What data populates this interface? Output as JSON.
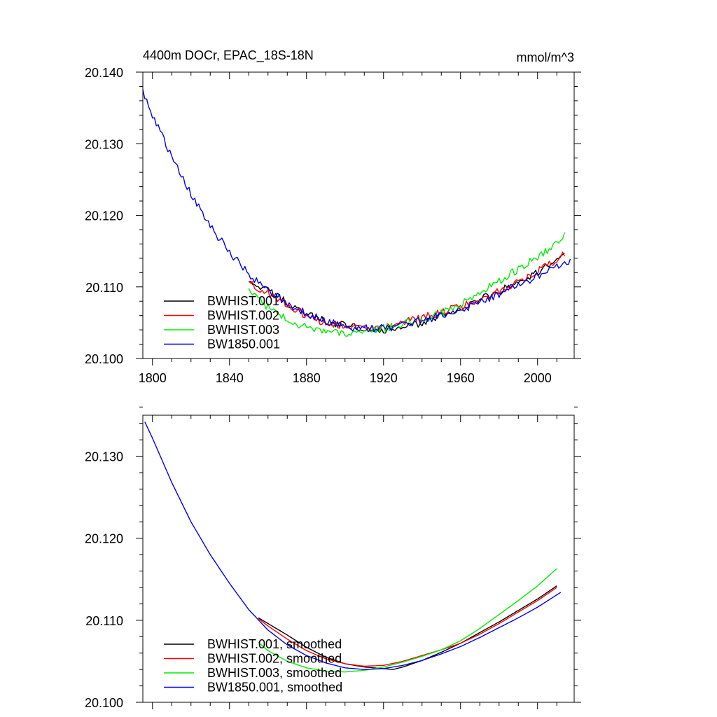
{
  "chart_data": [
    {
      "type": "line",
      "title": "4400m DOCr, EPAC_18S-18N",
      "units": "mmol/m^3",
      "xlim": [
        1795,
        2019
      ],
      "ylim": [
        20.1,
        20.14
      ],
      "xticks": [
        1800,
        1840,
        1880,
        1920,
        1960,
        2000
      ],
      "xtick_labels": [
        "1800",
        "1840",
        "1880",
        "1920",
        "1960",
        "2000"
      ],
      "yticks": [
        20.1,
        20.11,
        20.12,
        20.13,
        20.14
      ],
      "ytick_labels": [
        "20.100",
        "20.110",
        "20.120",
        "20.130",
        "20.140"
      ],
      "legend_position": "bottom-left",
      "grid": false,
      "series": [
        {
          "name": "BWHIST.001",
          "color": "#000000",
          "x": [
            1850,
            1860,
            1870,
            1880,
            1890,
            1900,
            1910,
            1920,
            1930,
            1940,
            1950,
            1960,
            1970,
            1980,
            1990,
            2000,
            2010,
            2014
          ],
          "y": [
            20.1105,
            20.1095,
            20.1078,
            20.1062,
            20.1052,
            20.1046,
            20.1043,
            20.104,
            20.1042,
            20.105,
            20.106,
            20.107,
            20.1082,
            20.1093,
            20.1108,
            20.112,
            20.1138,
            20.1145
          ]
        },
        {
          "name": "BWHIST.002",
          "color": "#ff0000",
          "x": [
            1850,
            1860,
            1870,
            1880,
            1890,
            1900,
            1910,
            1920,
            1930,
            1940,
            1950,
            1960,
            1970,
            1980,
            1990,
            2000,
            2010,
            2014
          ],
          "y": [
            20.1105,
            20.1092,
            20.1075,
            20.106,
            20.105,
            20.1044,
            20.1042,
            20.1045,
            20.105,
            20.1057,
            20.1065,
            20.1072,
            20.1082,
            20.1094,
            20.1108,
            20.1122,
            20.1138,
            20.1145
          ]
        },
        {
          "name": "BWHIST.003",
          "color": "#00ee00",
          "x": [
            1850,
            1860,
            1870,
            1880,
            1890,
            1900,
            1910,
            1920,
            1930,
            1940,
            1950,
            1960,
            1970,
            1980,
            1990,
            2000,
            2010,
            2014
          ],
          "y": [
            20.1095,
            20.1072,
            20.1055,
            20.1043,
            20.1037,
            20.1036,
            20.1038,
            20.1042,
            20.1048,
            20.1055,
            20.1063,
            20.1075,
            20.1092,
            20.1108,
            20.1125,
            20.1142,
            20.116,
            20.1172
          ]
        },
        {
          "name": "BW1850.001",
          "color": "#0000ee",
          "x": [
            1795,
            1800,
            1810,
            1820,
            1830,
            1840,
            1850,
            1860,
            1870,
            1880,
            1890,
            1900,
            1910,
            1920,
            1930,
            1940,
            1950,
            1960,
            1970,
            1980,
            1990,
            2000,
            2010,
            2017
          ],
          "y": [
            20.1372,
            20.134,
            20.1282,
            20.123,
            20.1185,
            20.1148,
            20.1118,
            20.1095,
            20.1077,
            20.1062,
            20.1052,
            20.1045,
            20.1042,
            20.1042,
            20.1046,
            20.1053,
            20.106,
            20.1068,
            20.1078,
            20.109,
            20.1103,
            20.1115,
            20.1128,
            20.1138
          ]
        }
      ]
    },
    {
      "type": "line",
      "xlim": [
        1795,
        2019
      ],
      "ylim": [
        20.1,
        20.135
      ],
      "xticks": [
        1800,
        1840,
        1880,
        1920,
        1960,
        2000
      ],
      "yticks": [
        20.1,
        20.11,
        20.12,
        20.13
      ],
      "ytick_labels": [
        "20.100",
        "20.110",
        "20.120",
        "20.130"
      ],
      "legend_position": "bottom-left",
      "grid": false,
      "series": [
        {
          "name": "BWHIST.001, smoothed",
          "color": "#000000",
          "x": [
            1855,
            1860,
            1870,
            1880,
            1890,
            1900,
            1910,
            1920,
            1925,
            1930,
            1940,
            1950,
            1960,
            1970,
            1980,
            1990,
            2000,
            2010
          ],
          "y": [
            20.1103,
            20.1096,
            20.1082,
            20.1067,
            20.1055,
            20.1047,
            20.1043,
            20.1041,
            20.104,
            20.1043,
            20.1051,
            20.1061,
            20.1072,
            20.1085,
            20.1098,
            20.1112,
            20.1126,
            20.1142
          ]
        },
        {
          "name": "BWHIST.002, smoothed",
          "color": "#ff0000",
          "x": [
            1855,
            1860,
            1870,
            1880,
            1890,
            1900,
            1910,
            1920,
            1930,
            1940,
            1950,
            1960,
            1970,
            1980,
            1990,
            2000,
            2010
          ],
          "y": [
            20.1102,
            20.1093,
            20.1077,
            20.1063,
            20.1053,
            20.1047,
            20.1044,
            20.1045,
            20.105,
            20.1057,
            20.1064,
            20.1072,
            20.1083,
            20.1096,
            20.111,
            20.1124,
            20.114
          ]
        },
        {
          "name": "BWHIST.003, smoothed",
          "color": "#00ee00",
          "x": [
            1855,
            1860,
            1870,
            1880,
            1890,
            1900,
            1910,
            1920,
            1930,
            1940,
            1950,
            1960,
            1970,
            1980,
            1990,
            2000,
            2010
          ],
          "y": [
            20.1073,
            20.1063,
            20.105,
            20.1042,
            20.1038,
            20.1037,
            20.1039,
            20.1043,
            20.1049,
            20.1056,
            20.1064,
            20.1075,
            20.109,
            20.1107,
            20.1124,
            20.1142,
            20.1163
          ]
        },
        {
          "name": "BW1850.001, smoothed",
          "color": "#0000ee",
          "x": [
            1796,
            1800,
            1810,
            1820,
            1830,
            1840,
            1850,
            1860,
            1870,
            1880,
            1890,
            1900,
            1910,
            1920,
            1930,
            1940,
            1950,
            1960,
            1970,
            1980,
            1990,
            2000,
            2010,
            2012
          ],
          "y": [
            20.1342,
            20.1322,
            20.1268,
            20.122,
            20.118,
            20.1145,
            20.1113,
            20.1088,
            20.107,
            20.1057,
            20.1048,
            20.1042,
            20.104,
            20.1041,
            20.1045,
            20.1051,
            20.1059,
            20.1068,
            20.1079,
            20.1091,
            20.1103,
            20.1116,
            20.1131,
            20.1134
          ]
        }
      ]
    }
  ]
}
